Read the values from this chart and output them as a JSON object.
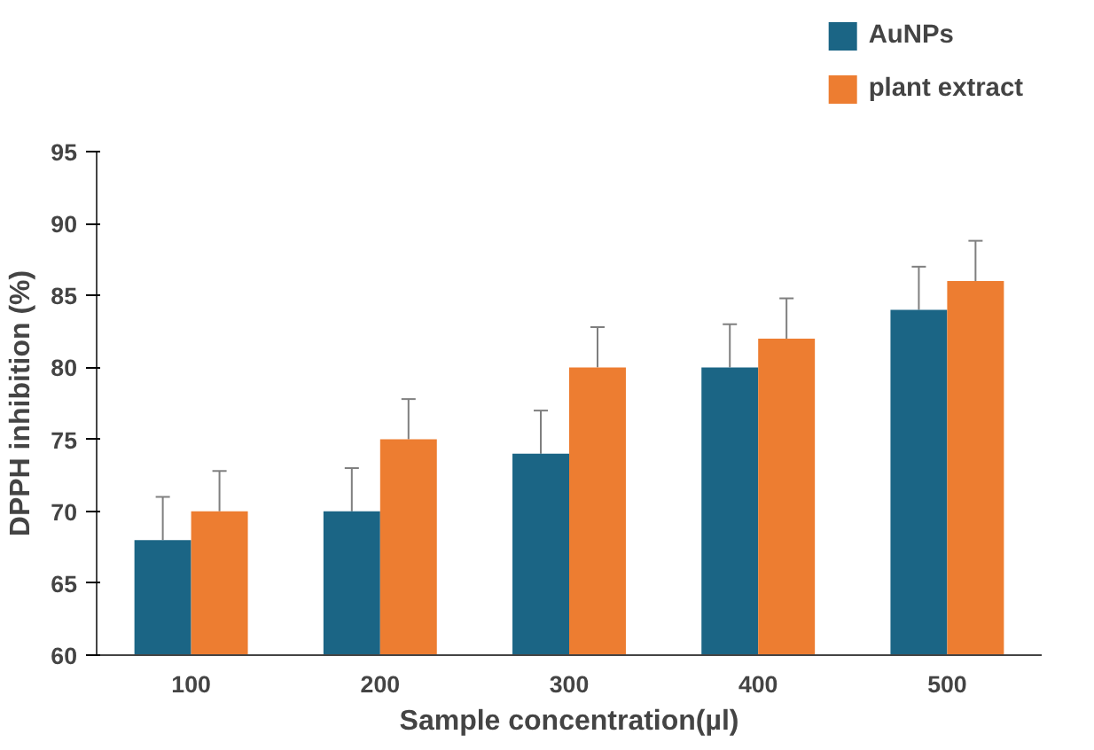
{
  "chart_data": {
    "type": "bar",
    "xlabel": "Sample concentration(µl)",
    "ylabel": "DPPH inhibition (%)",
    "categories": [
      "100",
      "200",
      "300",
      "400",
      "500"
    ],
    "series": [
      {
        "name": "AuNPs",
        "color": "#1b6585",
        "values": [
          68,
          70,
          74,
          80,
          84
        ],
        "errors": [
          [
            68,
            71
          ],
          [
            70,
            73
          ],
          [
            74,
            77
          ],
          [
            80,
            83
          ],
          [
            84,
            87
          ]
        ]
      },
      {
        "name": "plant extract",
        "color": "#ed7d31",
        "values": [
          70,
          75,
          80,
          82,
          86
        ],
        "errors": [
          [
            70,
            72.8
          ],
          [
            75,
            77.8
          ],
          [
            80,
            82.8
          ],
          [
            82,
            84.8
          ],
          [
            86,
            88.8
          ]
        ]
      }
    ],
    "ylim": [
      60,
      95
    ],
    "yticks": [
      60,
      65,
      70,
      75,
      80,
      85,
      90,
      95
    ],
    "grid": false,
    "legend": "top right"
  }
}
